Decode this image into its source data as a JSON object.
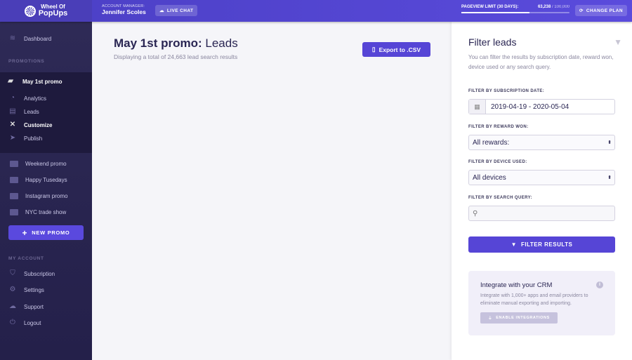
{
  "header": {
    "logo_top": "Wheel Of",
    "logo_bottom": "PopUps",
    "account_manager_label": "ACCOUNT MANAGER:",
    "account_manager": "Jennifer Scoles",
    "live_chat": "LIVE CHAT",
    "pageview_label": "PAGEVIEW LIMIT (30 DAYS):",
    "pageview_used": "63,238",
    "pageview_total": "/ 100,000",
    "pageview_fraction": 0.63238,
    "change_plan": "CHANGE PLAN"
  },
  "sidebar": {
    "dashboard": "Dashboard",
    "promotions_heading": "PROMOTIONS",
    "active_promo": "May 1st promo",
    "promo_items": [
      "Analytics",
      "Leads",
      "Customize",
      "Publish"
    ],
    "other_promos": [
      "Weekend promo",
      "Happy Tusedays",
      "Instagram promo",
      "NYC trade show"
    ],
    "new_promo": "NEW PROMO",
    "account_heading": "MY ACCOUNT",
    "account_items": [
      "Subscription",
      "Settings",
      "Support",
      "Logout"
    ]
  },
  "main": {
    "title_bold": "May 1st promo:",
    "title_rest": "Leads",
    "subtitle": "Displaying a total of 24,663 lead search results",
    "export": "Export to .CSV"
  },
  "filter": {
    "title": "Filter leads",
    "description": "You can filter the results by subscription date, reward won, device used or any search query.",
    "date_label": "FILTER BY SUBSCRIPTION DATE:",
    "date_value": "2019-04-19 - 2020-05-04",
    "reward_label": "FILTER BY REWARD WON:",
    "reward_value": "All rewards:",
    "device_label": "FILTER BY DEVICE USED:",
    "device_value": "All devices",
    "query_label": "FILTER BY SEARCH QUERY:",
    "query_value": "",
    "button": "FILTER RESULTS"
  },
  "crm": {
    "title": "Integrate with your CRM",
    "text": "Integrate with 1,000+ apps and email providers to eliminate manual exporting and importing.",
    "button": "ENABLE INTEGRATIONS"
  },
  "colors": {
    "accent": "#5645d6",
    "sidebar": "#26224a"
  }
}
